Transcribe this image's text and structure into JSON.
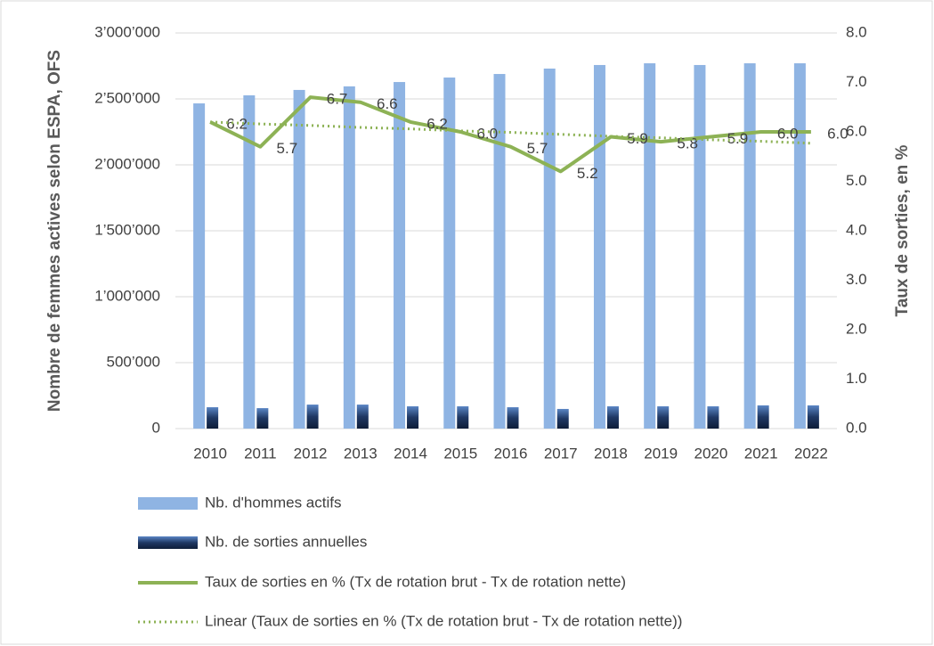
{
  "chart_data": {
    "type": "combo",
    "y_label": "Nombre de femmes actives selon ESPA, OFS",
    "y2_label": "Taux de sorties, en %",
    "categories": [
      "2010",
      "2011",
      "2012",
      "2013",
      "2014",
      "2015",
      "2016",
      "2017",
      "2018",
      "2019",
      "2020",
      "2021",
      "2022"
    ],
    "ylim": [
      0,
      3000000
    ],
    "yticks": [
      0,
      {
        "value": 500000,
        "label": "500’000"
      },
      {
        "value": 1000000,
        "label": "1’000’000"
      },
      {
        "value": 1500000,
        "label": "1’500’000"
      },
      {
        "value": 2000000,
        "label": "2’000’000"
      },
      {
        "value": 2500000,
        "label": "2’500’000"
      },
      {
        "value": 3000000,
        "label": "3’000’000"
      }
    ],
    "y2lim": [
      0,
      8
    ],
    "y2ticks": [
      {
        "value": 0,
        "label": "0.0"
      },
      {
        "value": 1,
        "label": "1.0"
      },
      {
        "value": 2,
        "label": "2.0"
      },
      {
        "value": 3,
        "label": "3.0"
      },
      {
        "value": 4,
        "label": "4.0"
      },
      {
        "value": 5,
        "label": "5.0"
      },
      {
        "value": 6,
        "label": "6.0"
      },
      {
        "value": 7,
        "label": "7.0"
      },
      {
        "value": 8,
        "label": "8.0"
      }
    ],
    "grid": true,
    "legend": "bottom",
    "series": [
      {
        "name": "Nb. d'hommes actifs",
        "type": "bar",
        "axis": "y",
        "color": "#8fb4e3",
        "values": [
          2466000,
          2527000,
          2568000,
          2595000,
          2628000,
          2662000,
          2689000,
          2730000,
          2757000,
          2770000,
          2757000,
          2770000,
          2770000
        ]
      },
      {
        "name": "Nb. de sorties annuelles",
        "type": "bar",
        "axis": "y",
        "color": "#1f3864",
        "values": [
          162000,
          155000,
          182000,
          182000,
          169000,
          169000,
          162000,
          149000,
          169000,
          169000,
          169000,
          176000,
          176000
        ]
      },
      {
        "name": "Taux de sorties en % (Tx de rotation brut - Tx de rotation nette)",
        "type": "line",
        "axis": "y2",
        "color": "#8db255",
        "values": [
          6.2,
          5.7,
          6.7,
          6.6,
          6.2,
          6.0,
          5.7,
          5.2,
          5.9,
          5.8,
          5.9,
          6.0,
          6.0
        ],
        "value_labels": [
          "6.2",
          "5.7",
          "6.7",
          "6.6",
          "6.2",
          "6.0",
          "5.7",
          "5.2",
          "5.9",
          "5.8",
          "5.9",
          "6.0",
          "6.0"
        ]
      },
      {
        "name": "Linear (Taux de sorties en % (Tx de rotation brut - Tx de rotation nette))",
        "type": "trend",
        "axis": "y2",
        "color": "#8db255",
        "values": [
          6.2,
          6.16,
          6.13,
          6.09,
          6.06,
          6.02,
          5.99,
          5.95,
          5.91,
          5.88,
          5.84,
          5.81,
          5.77
        ]
      }
    ]
  }
}
